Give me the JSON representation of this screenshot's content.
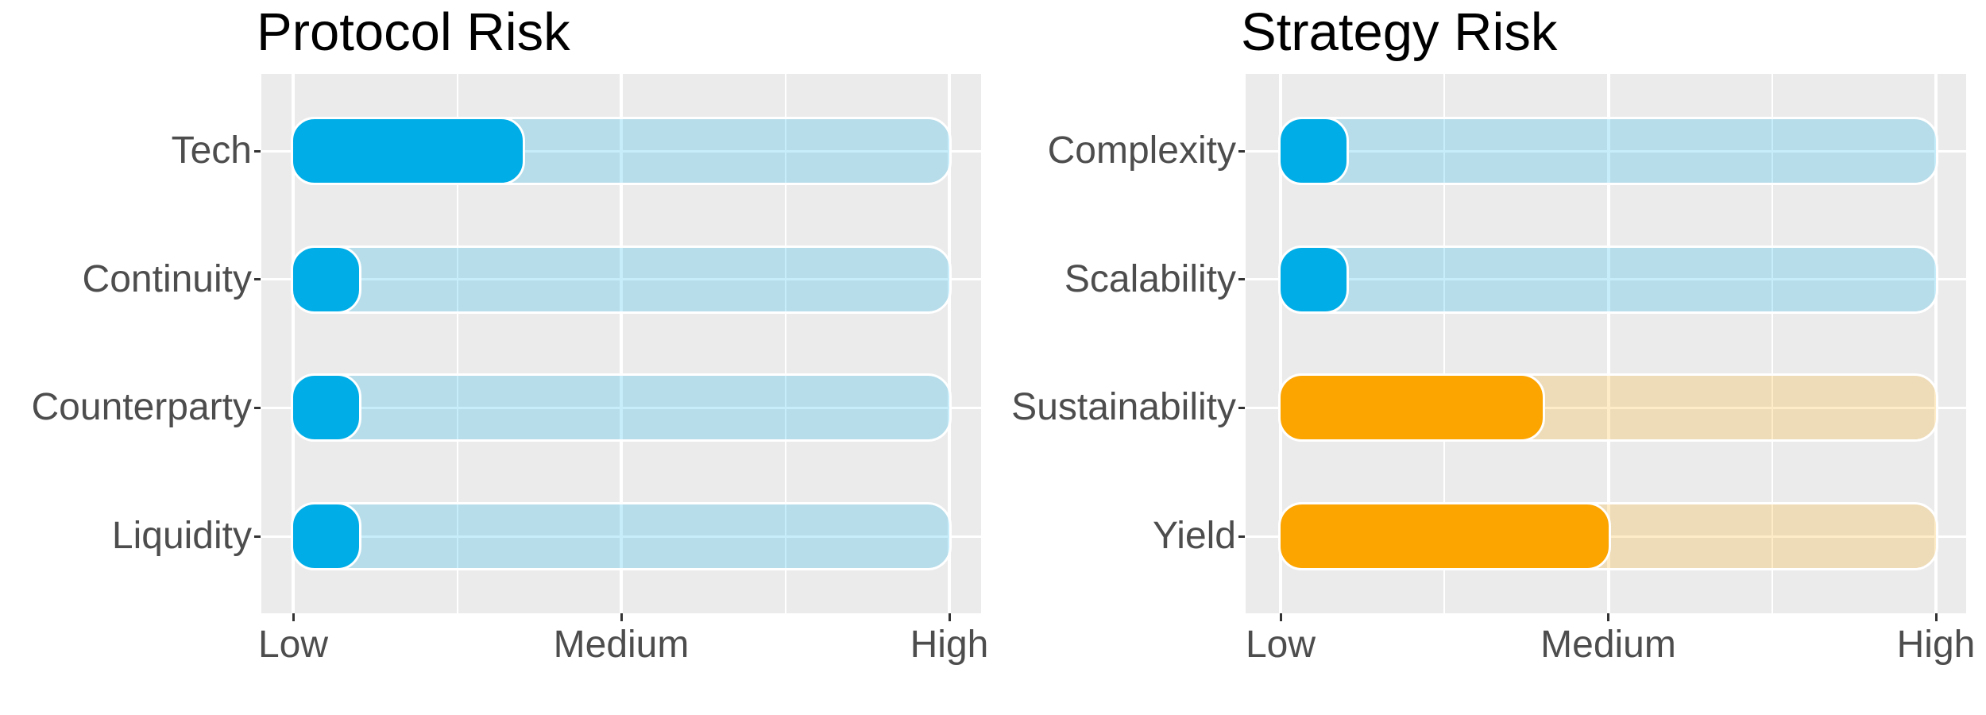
{
  "figure": {
    "background": "#ffffff",
    "panel_background": "#ebebeb",
    "gridline_color": "#ffffff",
    "axis_text_color": "#4d4d4d",
    "tick_mark_color": "#333333",
    "title_color": "#000000",
    "track_alpha": 0.22
  },
  "chart_data": [
    {
      "type": "bar",
      "orientation": "horizontal",
      "title": "Protocol Risk",
      "categories": [
        "Tech",
        "Continuity",
        "Counterparty",
        "Liquidity"
      ],
      "values": [
        0.35,
        0.1,
        0.1,
        0.1
      ],
      "bar_colors": [
        "#00ade6",
        "#00ade6",
        "#00ade6",
        "#00ade6"
      ],
      "track_full_value": 1,
      "x_tick_labels": [
        "Low",
        "Medium",
        "High"
      ],
      "x_tick_positions": [
        0,
        0.5,
        1
      ],
      "xlim": [
        0,
        1
      ],
      "xlabel": "",
      "ylabel": "",
      "grid": true,
      "legend": "none"
    },
    {
      "type": "bar",
      "orientation": "horizontal",
      "title": "Strategy Risk",
      "categories": [
        "Complexity",
        "Scalability",
        "Sustainability",
        "Yield"
      ],
      "values": [
        0.1,
        0.1,
        0.4,
        0.5
      ],
      "bar_colors": [
        "#00ade6",
        "#00ade6",
        "#fca400",
        "#fca400"
      ],
      "track_full_value": 1,
      "x_tick_labels": [
        "Low",
        "Medium",
        "High"
      ],
      "x_tick_positions": [
        0,
        0.5,
        1
      ],
      "xlim": [
        0,
        1
      ],
      "xlabel": "",
      "ylabel": "",
      "grid": true,
      "legend": "none"
    }
  ]
}
